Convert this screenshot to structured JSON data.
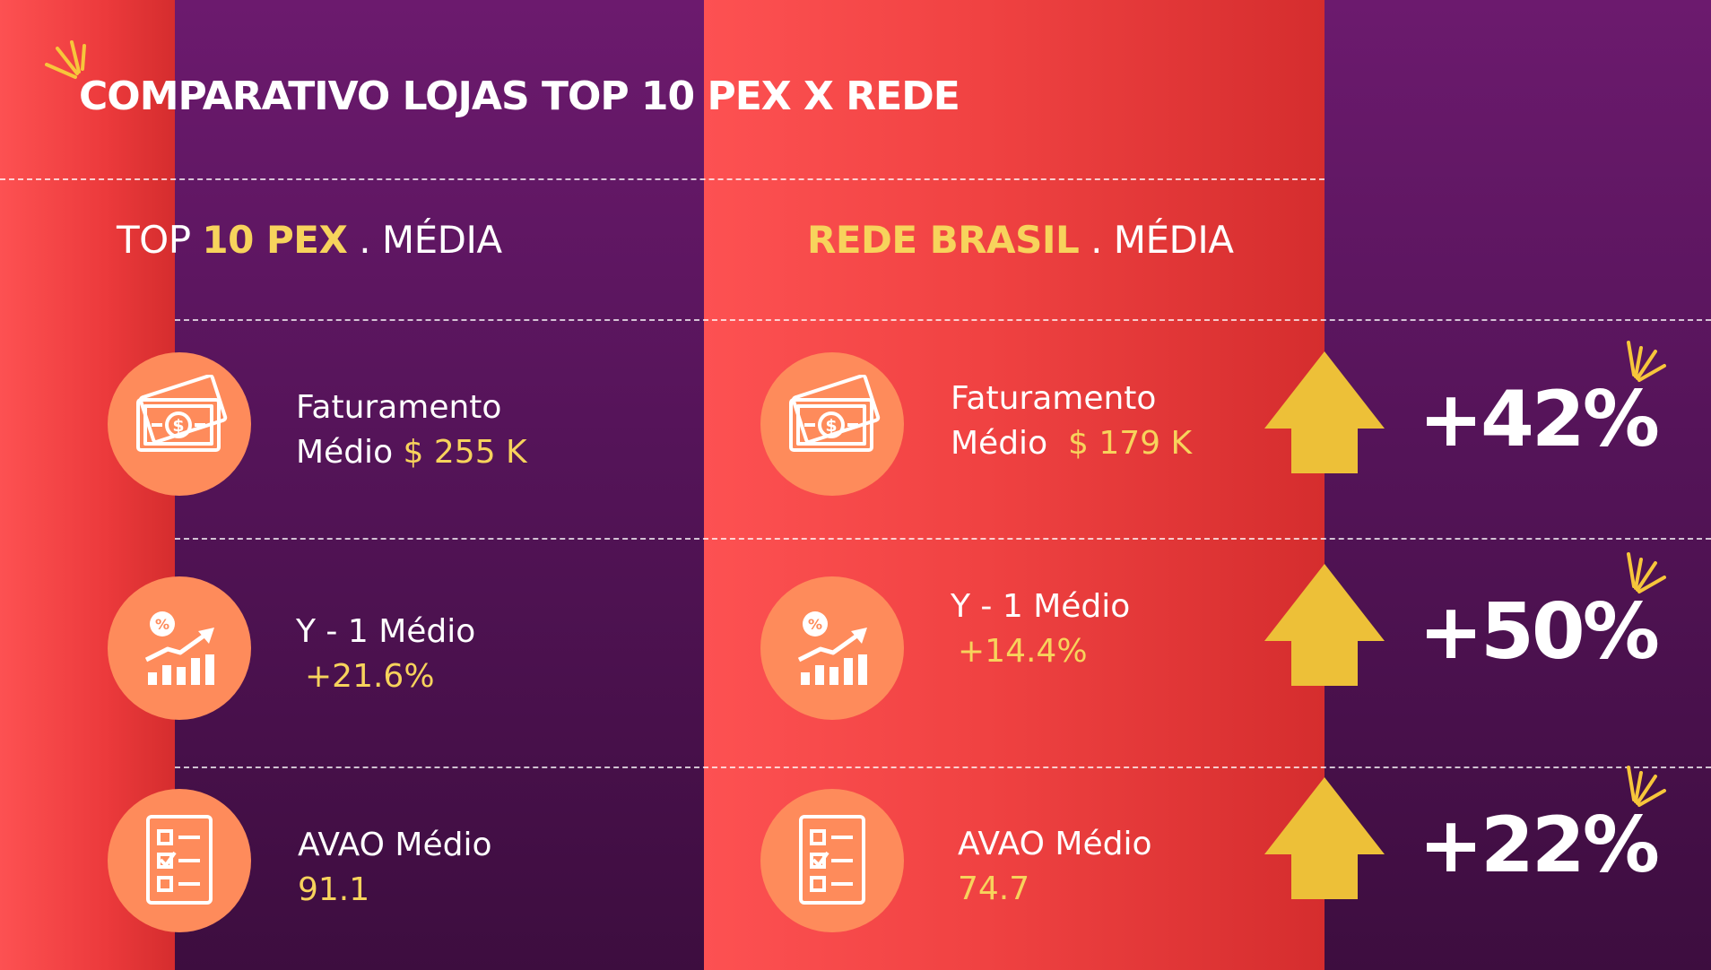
{
  "title": "COMPARATIVO LOJAS TOP 10 PEX X REDE",
  "left_header": {
    "pre": "TOP ",
    "bold": "10 PEX",
    "post": " . MÉDIA"
  },
  "right_header": {
    "bold": "REDE BRASIL",
    "post": " . MÉDIA"
  },
  "top10": [
    {
      "icon": "money-icon",
      "line1": "Faturamento",
      "label": "Médio ",
      "value": "$ 255 K"
    },
    {
      "icon": "growth-chart-icon",
      "line1": "Y - 1 Médio",
      "value": "+21.6%"
    },
    {
      "icon": "checklist-icon",
      "line1": "AVAO Médio",
      "value": "91.1"
    }
  ],
  "rede": [
    {
      "icon": "money-icon",
      "line1": "Faturamento",
      "label": "Médio  ",
      "value": "$ 179 K"
    },
    {
      "icon": "growth-chart-icon",
      "line1": "Y - 1 Médio",
      "value": "+14.4%"
    },
    {
      "icon": "checklist-icon",
      "line1": "AVAO Médio",
      "value": "74.7"
    }
  ],
  "comparisons": [
    {
      "icon": "up-arrow-icon",
      "value": "+42%"
    },
    {
      "icon": "up-arrow-icon",
      "value": "+50%"
    },
    {
      "icon": "up-arrow-icon",
      "value": "+22%"
    }
  ],
  "colors": {
    "purple": "#6c1a6e",
    "red": "#fd5152",
    "orange": "#fe8b5b",
    "yellow": "#f7d35c",
    "arrow": "#edc038"
  }
}
